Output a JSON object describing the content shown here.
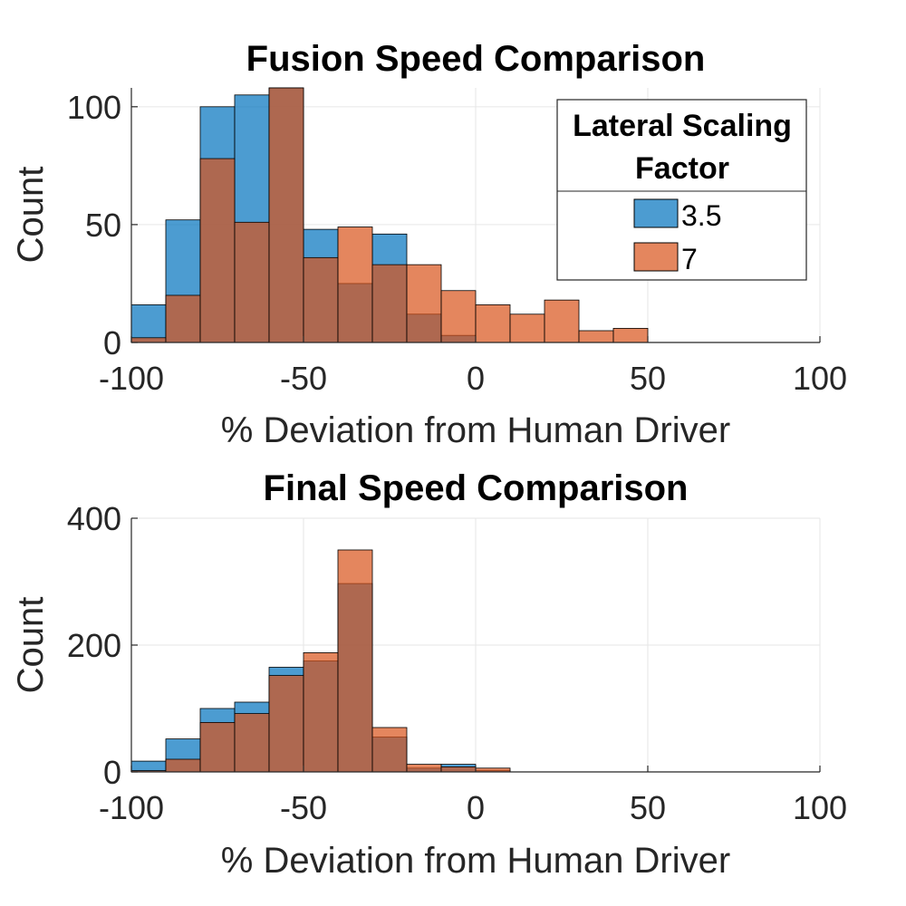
{
  "colors": {
    "series_a": "#0072BD",
    "series_b": "#D95319",
    "bar_alpha": 0.7,
    "edge": "#000000"
  },
  "legend": {
    "title_line1": "Lateral Scaling",
    "title_line2": "Factor",
    "entries": [
      "3.5",
      "7"
    ]
  },
  "chart_data": [
    {
      "type": "bar",
      "title": "Fusion Speed Comparison",
      "xlabel": "% Deviation from Human Driver",
      "ylabel": "Count",
      "xlim": [
        -100,
        100
      ],
      "ylim": [
        0,
        108
      ],
      "xticks": [
        -100,
        -50,
        0,
        50,
        100
      ],
      "yticks": [
        0,
        50,
        100
      ],
      "bin_edges": [
        -100,
        -90,
        -80,
        -70,
        -60,
        -50,
        -40,
        -30,
        -20,
        -10,
        0,
        10,
        20,
        30,
        40,
        50
      ],
      "series": [
        {
          "name": "3.5",
          "values": [
            16,
            52,
            100,
            105,
            108,
            48,
            25,
            46,
            12,
            3,
            0,
            0,
            0,
            0,
            0
          ]
        },
        {
          "name": "7",
          "values": [
            2,
            20,
            78,
            51,
            109,
            36,
            49,
            33,
            33,
            22,
            16,
            12,
            18,
            5,
            6
          ]
        }
      ]
    },
    {
      "type": "bar",
      "title": "Final Speed Comparison",
      "xlabel": "% Deviation from Human Driver",
      "ylabel": "Count",
      "xlim": [
        -100,
        100
      ],
      "ylim": [
        0,
        400
      ],
      "xticks": [
        -100,
        -50,
        0,
        50,
        100
      ],
      "yticks": [
        0,
        200,
        400
      ],
      "bin_edges": [
        -100,
        -90,
        -80,
        -70,
        -60,
        -50,
        -40,
        -30,
        -20,
        -10,
        0,
        10
      ],
      "series": [
        {
          "name": "3.5",
          "values": [
            17,
            52,
            100,
            110,
            165,
            175,
            297,
            55,
            6,
            12,
            2
          ]
        },
        {
          "name": "7",
          "values": [
            2,
            20,
            78,
            92,
            152,
            188,
            350,
            70,
            12,
            8,
            6
          ]
        }
      ]
    }
  ]
}
